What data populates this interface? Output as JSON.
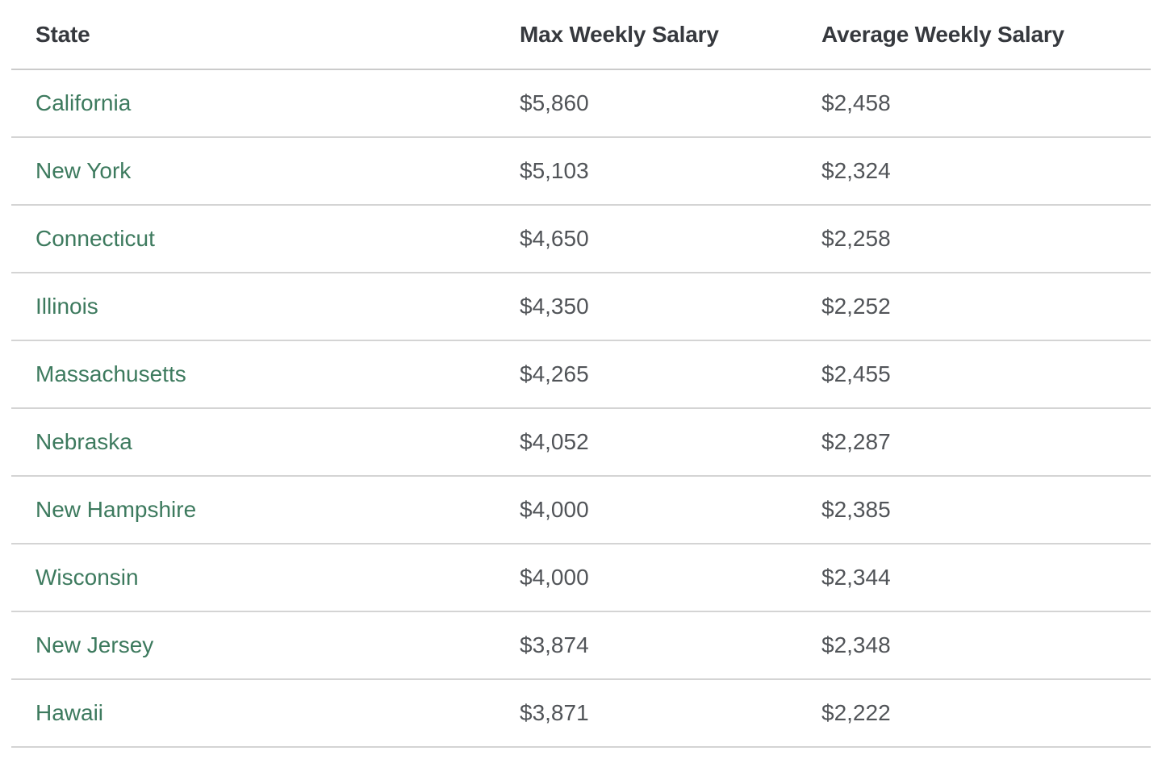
{
  "table": {
    "headers": {
      "state": "State",
      "max_weekly": "Max Weekly Salary",
      "average_weekly": "Average Weekly Salary"
    },
    "rows": [
      {
        "state": "California",
        "max_weekly": "$5,860",
        "average_weekly": "$2,458"
      },
      {
        "state": "New York",
        "max_weekly": "$5,103",
        "average_weekly": "$2,324"
      },
      {
        "state": "Connecticut",
        "max_weekly": "$4,650",
        "average_weekly": "$2,258"
      },
      {
        "state": "Illinois",
        "max_weekly": "$4,350",
        "average_weekly": "$2,252"
      },
      {
        "state": "Massachusetts",
        "max_weekly": "$4,265",
        "average_weekly": "$2,455"
      },
      {
        "state": "Nebraska",
        "max_weekly": "$4,052",
        "average_weekly": "$2,287"
      },
      {
        "state": "New Hampshire",
        "max_weekly": "$4,000",
        "average_weekly": "$2,385"
      },
      {
        "state": "Wisconsin",
        "max_weekly": "$4,000",
        "average_weekly": "$2,344"
      },
      {
        "state": "New Jersey",
        "max_weekly": "$3,874",
        "average_weekly": "$2,348"
      },
      {
        "state": "Hawaii",
        "max_weekly": "$3,871",
        "average_weekly": "$2,222"
      }
    ],
    "colors": {
      "header_text": "#36393e",
      "cell_text": "#515458",
      "state_link": "#3d7a5e",
      "header_border": "#cbcbcb",
      "row_border": "#d4d4d4",
      "background": "#ffffff"
    }
  },
  "chart_data": {
    "type": "table",
    "columns": [
      "State",
      "Max Weekly Salary",
      "Average Weekly Salary"
    ],
    "rows": [
      [
        "California",
        "$5,860",
        "$2,458"
      ],
      [
        "New York",
        "$5,103",
        "$2,324"
      ],
      [
        "Connecticut",
        "$4,650",
        "$2,258"
      ],
      [
        "Illinois",
        "$4,350",
        "$2,252"
      ],
      [
        "Massachusetts",
        "$4,265",
        "$2,455"
      ],
      [
        "Nebraska",
        "$4,052",
        "$2,287"
      ],
      [
        "New Hampshire",
        "$4,000",
        "$2,385"
      ],
      [
        "Wisconsin",
        "$4,000",
        "$2,344"
      ],
      [
        "New Jersey",
        "$3,874",
        "$2,348"
      ],
      [
        "Hawaii",
        "$3,871",
        "$2,222"
      ]
    ],
    "max_weekly_values": [
      5860,
      5103,
      4650,
      4350,
      4265,
      4052,
      4000,
      4000,
      3874,
      3871
    ],
    "average_weekly_values": [
      2458,
      2324,
      2258,
      2252,
      2455,
      2287,
      2385,
      2344,
      2348,
      2222
    ]
  }
}
